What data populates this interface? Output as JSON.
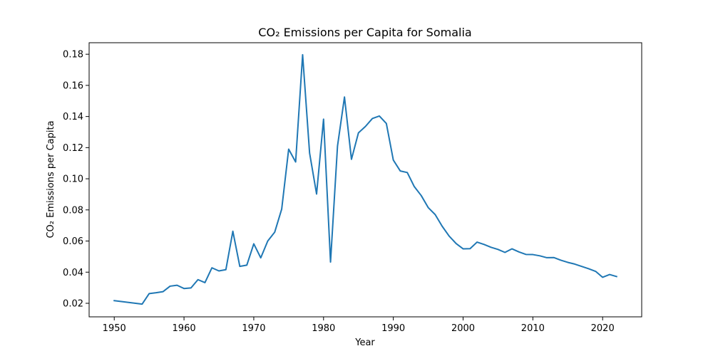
{
  "chart_data": {
    "type": "line",
    "title": "CO₂ Emissions per Capita for Somalia",
    "xlabel": "Year",
    "ylabel": "CO₂ Emissions per Capita",
    "xlim": [
      1946.4,
      2025.6
    ],
    "ylim": [
      0.0113,
      0.1874
    ],
    "xticks": [
      1950,
      1960,
      1970,
      1980,
      1990,
      2000,
      2010,
      2020
    ],
    "yticks": [
      0.02,
      0.04,
      0.06,
      0.08,
      0.1,
      0.12,
      0.14,
      0.16,
      0.18
    ],
    "ytick_labels": [
      "0.02",
      "0.04",
      "0.06",
      "0.08",
      "0.10",
      "0.12",
      "0.14",
      "0.16",
      "0.18"
    ],
    "grid": false,
    "series": [
      {
        "color": "#1f77b4",
        "x": [
          1950,
          1954,
          1955,
          1956,
          1957,
          1958,
          1959,
          1960,
          1961,
          1962,
          1963,
          1964,
          1965,
          1966,
          1967,
          1968,
          1969,
          1970,
          1971,
          1972,
          1973,
          1974,
          1975,
          1976,
          1977,
          1978,
          1979,
          1980,
          1981,
          1982,
          1983,
          1984,
          1985,
          1986,
          1987,
          1988,
          1989,
          1990,
          1991,
          1992,
          1993,
          1994,
          1995,
          1996,
          1997,
          1998,
          1999,
          2000,
          2001,
          2002,
          2003,
          2004,
          2005,
          2006,
          2007,
          2008,
          2009,
          2010,
          2011,
          2012,
          2013,
          2014,
          2015,
          2016,
          2017,
          2018,
          2019,
          2020,
          2021,
          2022
        ],
        "y": [
          0.0217,
          0.0195,
          0.0262,
          0.0268,
          0.0275,
          0.031,
          0.0316,
          0.0295,
          0.0299,
          0.0352,
          0.0333,
          0.0428,
          0.0408,
          0.0416,
          0.0663,
          0.0437,
          0.0445,
          0.0582,
          0.0492,
          0.06,
          0.0657,
          0.0805,
          0.119,
          0.1108,
          0.1797,
          0.1165,
          0.0902,
          0.1383,
          0.0465,
          0.121,
          0.1525,
          0.1125,
          0.1295,
          0.1336,
          0.1387,
          0.1403,
          0.1355,
          0.112,
          0.105,
          0.104,
          0.095,
          0.0892,
          0.0815,
          0.077,
          0.0695,
          0.0632,
          0.0584,
          0.055,
          0.0551,
          0.0593,
          0.0578,
          0.056,
          0.0546,
          0.0527,
          0.055,
          0.053,
          0.0514,
          0.0513,
          0.0505,
          0.0493,
          0.0494,
          0.0477,
          0.0463,
          0.0452,
          0.0437,
          0.0422,
          0.0405,
          0.0367,
          0.0385,
          0.0372
        ]
      }
    ]
  }
}
